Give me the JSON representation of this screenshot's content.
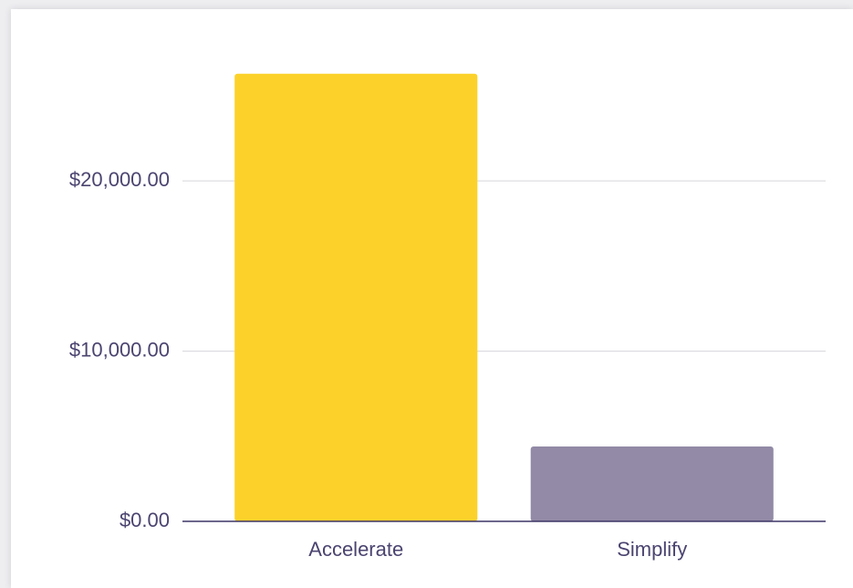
{
  "chart_data": {
    "type": "bar",
    "categories": [
      "Accelerate",
      "Simplify"
    ],
    "values": [
      26300,
      4400
    ],
    "colors": [
      "#fcd22a",
      "#928aa6"
    ],
    "ylim": [
      0,
      28000
    ],
    "yticks": [
      {
        "value": 0,
        "label": "$0.00"
      },
      {
        "value": 10000,
        "label": "$10,000.00"
      },
      {
        "value": 20000,
        "label": "$20,000.00"
      }
    ],
    "grid": true
  }
}
